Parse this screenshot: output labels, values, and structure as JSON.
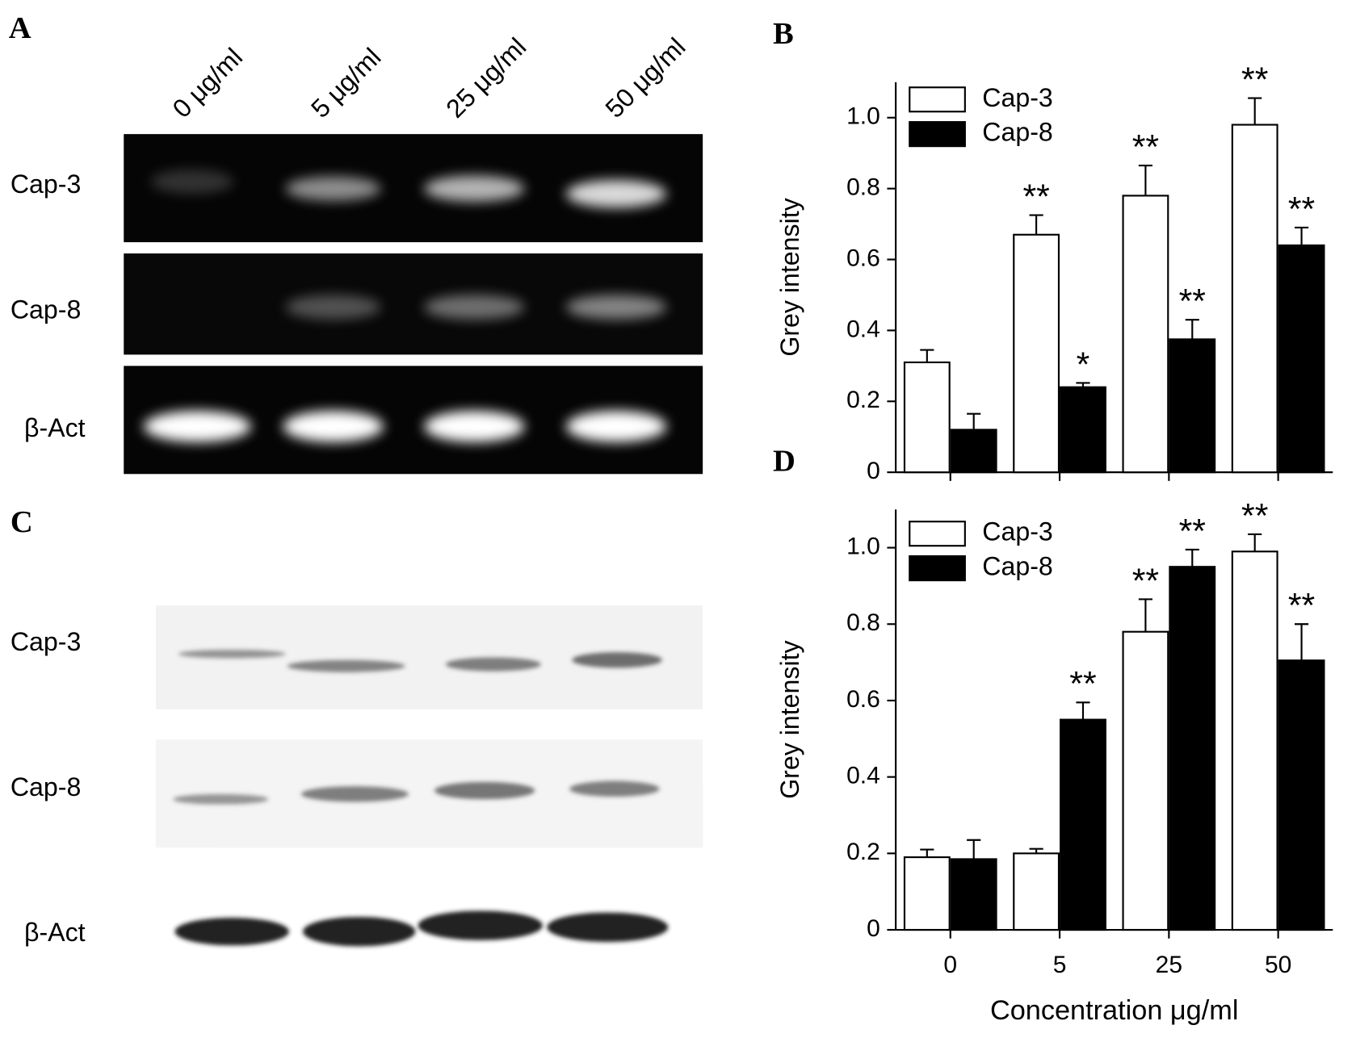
{
  "gel_a": {
    "panel_label": "A",
    "lanes": [
      "0 μg/ml",
      "5 μg/ml",
      "25 μg/ml",
      "50 μg/ml"
    ],
    "rows": [
      "Cap-3",
      "Cap-8",
      "β-Act"
    ]
  },
  "gel_c": {
    "panel_label": "C",
    "rows": [
      "Cap-3",
      "Cap-8",
      "β-Act"
    ]
  },
  "chart_data": [
    {
      "type": "bar",
      "panel_label": "B",
      "ylabel": "Grey intensity",
      "categories": [
        null,
        null,
        null,
        null
      ],
      "ylim": [
        0,
        1.1
      ],
      "yticks": [
        0,
        0.2,
        0.4,
        0.6,
        0.8,
        {
          "value": 1,
          "label": "1.0"
        }
      ],
      "legend": "upper left",
      "series": [
        {
          "name": "Cap-3",
          "color": "#ffffff",
          "values": [
            0.31,
            0.67,
            0.78,
            0.98
          ],
          "errors": [
            0.035,
            0.055,
            0.085,
            0.075
          ],
          "annotations": [
            null,
            "**",
            "**",
            "**"
          ]
        },
        {
          "name": "Cap-8",
          "color": "#000000",
          "values": [
            0.12,
            0.24,
            0.375,
            0.64
          ],
          "errors": [
            0.045,
            0.012,
            0.055,
            0.05
          ],
          "annotations": [
            null,
            "*",
            "**",
            "**"
          ]
        }
      ]
    },
    {
      "type": "bar",
      "panel_label": "D",
      "ylabel": "Grey intensity",
      "xlabel": "Concentration μg/ml",
      "categories": [
        "0",
        "5",
        "25",
        "50"
      ],
      "ylim": [
        0,
        1.1
      ],
      "yticks": [
        0,
        0.2,
        0.4,
        0.6,
        0.8,
        {
          "value": 1,
          "label": "1.0"
        }
      ],
      "legend": "upper left",
      "series": [
        {
          "name": "Cap-3",
          "color": "#ffffff",
          "values": [
            0.19,
            0.2,
            0.78,
            0.99
          ],
          "errors": [
            0.02,
            0.012,
            0.085,
            0.045
          ],
          "annotations": [
            null,
            null,
            "**",
            "**"
          ]
        },
        {
          "name": "Cap-8",
          "color": "#000000",
          "values": [
            0.185,
            0.55,
            0.95,
            0.705
          ],
          "errors": [
            0.05,
            0.045,
            0.045,
            0.095
          ],
          "annotations": [
            null,
            "**",
            "**",
            "**"
          ]
        }
      ]
    }
  ]
}
